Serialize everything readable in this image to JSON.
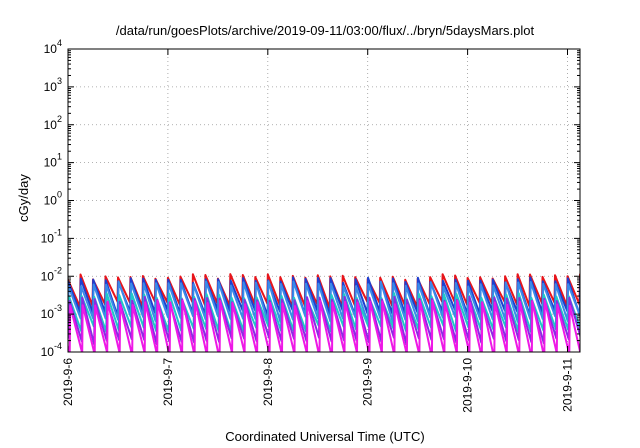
{
  "chart_data": {
    "type": "line",
    "title": "/data/run/goesPlots/archive/2019-09-11/03:00/flux/../bryn/5daysMars.plot",
    "xlabel": "Coordinated Universal Time (UTC)",
    "ylabel": "cGy/day",
    "yscale": "log",
    "ylim": [
      0.0001,
      10000
    ],
    "y_ticks": [
      {
        "base": "10",
        "exp": "-4",
        "value": 0.0001
      },
      {
        "base": "10",
        "exp": "-3",
        "value": 0.001
      },
      {
        "base": "10",
        "exp": "-2",
        "value": 0.01
      },
      {
        "base": "10",
        "exp": "-1",
        "value": 0.1
      },
      {
        "base": "10",
        "exp": "0",
        "value": 1
      },
      {
        "base": "10",
        "exp": "1",
        "value": 10
      },
      {
        "base": "10",
        "exp": "2",
        "value": 100
      },
      {
        "base": "10",
        "exp": "3",
        "value": 1000
      },
      {
        "base": "10",
        "exp": "4",
        "value": 10000
      }
    ],
    "xlim": [
      "2019-09-06 00:00",
      "2019-09-11 03:00"
    ],
    "x_ticks": [
      {
        "label": "2019-9-6",
        "time": "2019-09-06 00:00"
      },
      {
        "label": "2019-9-7",
        "time": "2019-09-07 00:00"
      },
      {
        "label": "2019-9-8",
        "time": "2019-09-08 00:00"
      },
      {
        "label": "2019-9-9",
        "time": "2019-09-09 00:00"
      },
      {
        "label": "2019-9-10",
        "time": "2019-09-10 00:00"
      },
      {
        "label": "2019-9-11",
        "time": "2019-09-11 00:00"
      }
    ],
    "grid": true,
    "sawtooth_period_hours": 3,
    "series": [
      {
        "color": "#e8141a",
        "peak": 0.0095,
        "trough": 0.0018,
        "phase": 0.0
      },
      {
        "color": "#1e3fcf",
        "peak": 0.0078,
        "trough": 0.0011,
        "phase": 0.02
      },
      {
        "color": "#3a8ae8",
        "peak": 0.0062,
        "trough": 0.00075,
        "phase": 0.05
      },
      {
        "color": "#20c8c8",
        "peak": 0.003,
        "trough": 0.00042,
        "phase": 0.1
      },
      {
        "color": "#8a2be2",
        "peak": 0.0024,
        "trough": 0.0002,
        "phase": 0.14
      },
      {
        "color": "#ee18e6",
        "peak": 0.0019,
        "trough": 8e-05,
        "phase": 0.18
      }
    ]
  }
}
